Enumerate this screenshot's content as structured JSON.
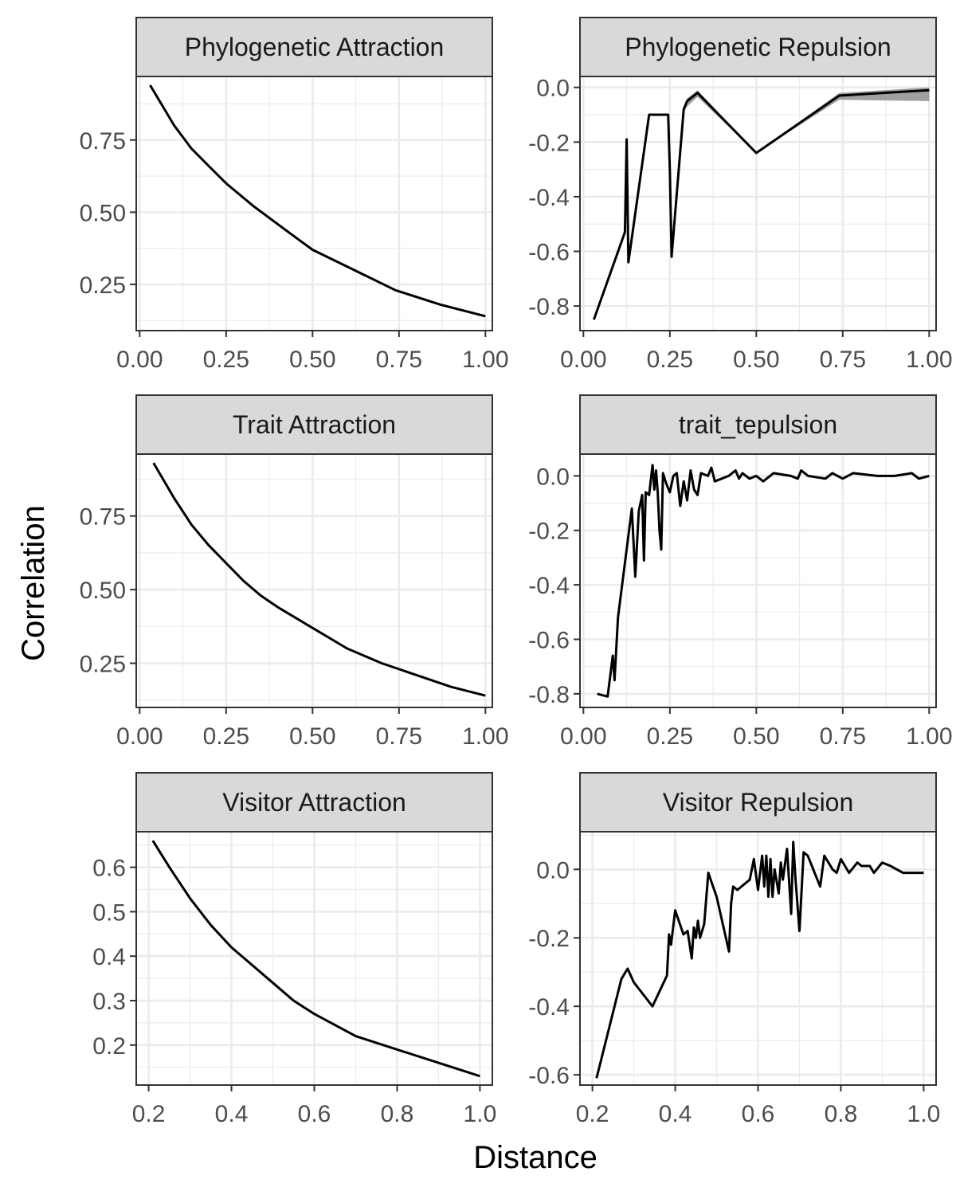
{
  "xlabel": "Distance",
  "ylabel": "Correlation",
  "chart_data": [
    {
      "type": "line",
      "title": "Phylogenetic Attraction",
      "xlim": [
        -0.01,
        1.02
      ],
      "ylim": [
        0.09,
        0.97
      ],
      "xticks": [
        0,
        0.25,
        0.5,
        0.75,
        1
      ],
      "xtick_labels": [
        "0.00",
        "0.25",
        "0.50",
        "0.75",
        "1.00"
      ],
      "yticks": [
        0.25,
        0.5,
        0.75
      ],
      "ytick_labels": [
        "0.25",
        "0.50",
        "0.75"
      ],
      "series": [
        {
          "x": [
            0.03,
            0.06,
            0.1,
            0.15,
            0.2,
            0.25,
            0.33,
            0.42,
            0.5,
            0.62,
            0.74,
            0.87,
            1.0
          ],
          "y": [
            0.94,
            0.88,
            0.8,
            0.72,
            0.66,
            0.6,
            0.52,
            0.44,
            0.37,
            0.3,
            0.23,
            0.18,
            0.14
          ]
        }
      ]
    },
    {
      "type": "line",
      "title": "Phylogenetic Repulsion",
      "xlim": [
        -0.01,
        1.02
      ],
      "ylim": [
        -0.89,
        0.04
      ],
      "xticks": [
        0,
        0.25,
        0.5,
        0.75,
        1
      ],
      "xtick_labels": [
        "0.00",
        "0.25",
        "0.50",
        "0.75",
        "1.00"
      ],
      "yticks": [
        -0.8,
        -0.6,
        -0.4,
        -0.2,
        0
      ],
      "ytick_labels": [
        "-0.8",
        "-0.6",
        "-0.4",
        "-0.2",
        "0.0"
      ],
      "series": [
        {
          "x": [
            0.03,
            0.12,
            0.125,
            0.13,
            0.19,
            0.245,
            0.25,
            0.255,
            0.29,
            0.3,
            0.33,
            0.5,
            0.74,
            1.0
          ],
          "y": [
            -0.85,
            -0.53,
            -0.19,
            -0.64,
            -0.1,
            -0.1,
            -0.3,
            -0.62,
            -0.08,
            -0.05,
            -0.02,
            -0.24,
            -0.03,
            -0.01
          ],
          "band_lower": [
            -0.85,
            -0.53,
            -0.19,
            -0.64,
            -0.1,
            -0.1,
            -0.3,
            -0.62,
            -0.09,
            -0.07,
            -0.035,
            -0.24,
            -0.045,
            -0.05
          ],
          "band_upper": [
            -0.85,
            -0.53,
            -0.19,
            -0.64,
            -0.1,
            -0.1,
            -0.3,
            -0.62,
            -0.07,
            -0.04,
            -0.01,
            -0.24,
            -0.02,
            0.0
          ]
        }
      ]
    },
    {
      "type": "line",
      "title": "Trait Attraction",
      "xlim": [
        -0.01,
        1.02
      ],
      "ylim": [
        0.1,
        0.96
      ],
      "xticks": [
        0,
        0.25,
        0.5,
        0.75,
        1
      ],
      "xtick_labels": [
        "0.00",
        "0.25",
        "0.50",
        "0.75",
        "1.00"
      ],
      "yticks": [
        0.25,
        0.5,
        0.75
      ],
      "ytick_labels": [
        "0.25",
        "0.50",
        "0.75"
      ],
      "series": [
        {
          "x": [
            0.04,
            0.1,
            0.15,
            0.2,
            0.25,
            0.3,
            0.35,
            0.4,
            0.5,
            0.6,
            0.7,
            0.8,
            0.9,
            1.0
          ],
          "y": [
            0.93,
            0.81,
            0.72,
            0.65,
            0.59,
            0.53,
            0.48,
            0.44,
            0.37,
            0.3,
            0.25,
            0.21,
            0.17,
            0.14
          ]
        }
      ]
    },
    {
      "type": "line",
      "title": "trait_tepulsion",
      "xlim": [
        -0.01,
        1.02
      ],
      "ylim": [
        -0.85,
        0.08
      ],
      "xticks": [
        0,
        0.25,
        0.5,
        0.75,
        1
      ],
      "xtick_labels": [
        "0.00",
        "0.25",
        "0.50",
        "0.75",
        "1.00"
      ],
      "yticks": [
        -0.8,
        -0.6,
        -0.4,
        -0.2,
        0
      ],
      "ytick_labels": [
        "-0.8",
        "-0.6",
        "-0.4",
        "-0.2",
        "0.0"
      ],
      "series": [
        {
          "x": [
            0.04,
            0.07,
            0.085,
            0.09,
            0.1,
            0.12,
            0.14,
            0.15,
            0.16,
            0.17,
            0.175,
            0.18,
            0.19,
            0.2,
            0.205,
            0.21,
            0.215,
            0.22,
            0.225,
            0.23,
            0.24,
            0.25,
            0.26,
            0.27,
            0.28,
            0.29,
            0.3,
            0.31,
            0.32,
            0.33,
            0.34,
            0.36,
            0.37,
            0.38,
            0.4,
            0.42,
            0.44,
            0.45,
            0.46,
            0.48,
            0.5,
            0.52,
            0.55,
            0.6,
            0.62,
            0.63,
            0.65,
            0.7,
            0.72,
            0.75,
            0.78,
            0.85,
            0.9,
            0.95,
            0.97,
            1.0
          ],
          "y": [
            -0.8,
            -0.81,
            -0.66,
            -0.75,
            -0.52,
            -0.32,
            -0.12,
            -0.37,
            -0.13,
            -0.07,
            -0.31,
            -0.06,
            -0.07,
            0.04,
            -0.05,
            0.02,
            -0.06,
            -0.2,
            -0.27,
            0.01,
            -0.03,
            -0.06,
            0.0,
            0.01,
            -0.11,
            -0.02,
            -0.09,
            0.02,
            -0.05,
            -0.07,
            0.01,
            0.0,
            0.03,
            -0.02,
            -0.01,
            0.0,
            0.02,
            -0.01,
            0.01,
            -0.01,
            0.0,
            -0.02,
            0.01,
            0.0,
            -0.01,
            0.02,
            0.0,
            -0.01,
            0.01,
            -0.01,
            0.01,
            0.0,
            0.0,
            0.01,
            -0.01,
            0.0
          ]
        }
      ]
    },
    {
      "type": "line",
      "title": "Visitor Attraction",
      "xlim": [
        0.17,
        1.03
      ],
      "ylim": [
        0.11,
        0.68
      ],
      "xticks": [
        0.2,
        0.4,
        0.6,
        0.8,
        1
      ],
      "xtick_labels": [
        "0.2",
        "0.4",
        "0.6",
        "0.8",
        "1.0"
      ],
      "yticks": [
        0.2,
        0.3,
        0.4,
        0.5,
        0.6
      ],
      "ytick_labels": [
        "0.2",
        "0.3",
        "0.4",
        "0.5",
        "0.6"
      ],
      "series": [
        {
          "x": [
            0.21,
            0.25,
            0.3,
            0.35,
            0.4,
            0.45,
            0.5,
            0.55,
            0.6,
            0.7,
            0.8,
            0.9,
            1.0
          ],
          "y": [
            0.66,
            0.6,
            0.53,
            0.47,
            0.42,
            0.38,
            0.34,
            0.3,
            0.27,
            0.22,
            0.19,
            0.16,
            0.13
          ]
        }
      ]
    },
    {
      "type": "line",
      "title": "Visitor Repulsion",
      "xlim": [
        0.17,
        1.03
      ],
      "ylim": [
        -0.63,
        0.11
      ],
      "xticks": [
        0.2,
        0.4,
        0.6,
        0.8,
        1
      ],
      "xtick_labels": [
        "0.2",
        "0.4",
        "0.6",
        "0.8",
        "1.0"
      ],
      "yticks": [
        -0.6,
        -0.4,
        -0.2,
        0
      ],
      "ytick_labels": [
        "-0.6",
        "-0.4",
        "-0.2",
        "0.0"
      ],
      "series": [
        {
          "x": [
            0.21,
            0.27,
            0.285,
            0.3,
            0.345,
            0.38,
            0.385,
            0.39,
            0.4,
            0.42,
            0.43,
            0.44,
            0.445,
            0.45,
            0.455,
            0.46,
            0.47,
            0.48,
            0.5,
            0.53,
            0.535,
            0.54,
            0.55,
            0.58,
            0.59,
            0.6,
            0.61,
            0.615,
            0.62,
            0.625,
            0.63,
            0.635,
            0.64,
            0.65,
            0.655,
            0.66,
            0.67,
            0.68,
            0.685,
            0.69,
            0.7,
            0.71,
            0.72,
            0.74,
            0.75,
            0.76,
            0.78,
            0.79,
            0.8,
            0.82,
            0.84,
            0.85,
            0.87,
            0.88,
            0.9,
            0.92,
            0.95,
            1.0
          ],
          "y": [
            -0.61,
            -0.32,
            -0.29,
            -0.33,
            -0.4,
            -0.31,
            -0.19,
            -0.22,
            -0.12,
            -0.19,
            -0.18,
            -0.26,
            -0.17,
            -0.2,
            -0.15,
            -0.2,
            -0.16,
            -0.01,
            -0.08,
            -0.24,
            -0.1,
            -0.05,
            -0.06,
            -0.03,
            0.03,
            -0.06,
            0.04,
            -0.05,
            0.04,
            -0.08,
            0.03,
            -0.08,
            0.0,
            -0.07,
            0.02,
            -0.03,
            0.06,
            -0.13,
            0.08,
            -0.02,
            -0.18,
            0.05,
            0.04,
            -0.02,
            -0.05,
            0.04,
            0.0,
            -0.01,
            0.03,
            -0.01,
            0.02,
            0.01,
            0.01,
            -0.01,
            0.02,
            0.01,
            -0.01,
            -0.01
          ]
        }
      ]
    }
  ]
}
